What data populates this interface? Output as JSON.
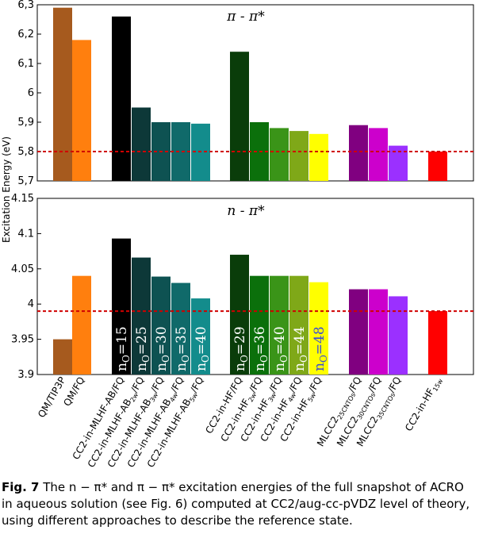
{
  "chart_data": [
    {
      "type": "bar",
      "panel": "top",
      "title": "π - π*",
      "ylabel": "Excitation Energy (eV)",
      "ylim": [
        5.7,
        6.3
      ],
      "yticks": [
        "5,7",
        "5,8",
        "5,9",
        "6",
        "6,1",
        "6,2",
        "6,3"
      ],
      "reference_line": 5.8,
      "categories": [
        "QM/TIP3P",
        "QM/FQ",
        "CC2-in-MLHF-AB/FQ",
        "CC2-in-MLHF-AB2w/FQ",
        "CC2-in-MLHF-AB3w/FQ",
        "CC2-in-MLHF-AB4w/FQ",
        "CC2-in-MLHF-AB5w/FQ",
        "CC2-in-HF/FQ",
        "CC2-in-HF2w/FQ",
        "CC2-in-HF3w/FQ",
        "CC2-in-HF4w/FQ",
        "CC2-in-HF5w/FQ",
        "MLCC2-25CNTOs/FQ",
        "MLCC2-30CNTOs/FQ",
        "MLCC2-35CNTOs/FQ",
        "CC2-in-HF15w"
      ],
      "values": [
        6.29,
        6.18,
        6.26,
        5.95,
        5.9,
        5.9,
        5.895,
        6.14,
        5.9,
        5.88,
        5.87,
        5.86,
        5.89,
        5.88,
        5.82,
        5.8
      ],
      "colors": [
        "#a65a1e",
        "#ff7f0e",
        "#000000",
        "#0d3838",
        "#0e5252",
        "#106a6a",
        "#138c8c",
        "#0a3d0a",
        "#0b700b",
        "#3a9418",
        "#7fa818",
        "#ffff00",
        "#800080",
        "#cc00cc",
        "#9b30ff",
        "#ff0000"
      ]
    },
    {
      "type": "bar",
      "panel": "bottom",
      "title": "n - π*",
      "ylim": [
        3.9,
        4.15
      ],
      "yticks": [
        "3.9",
        "3.95",
        "4",
        "4.05",
        "4.1",
        "4.15"
      ],
      "reference_line": 3.99,
      "categories": [
        "QM/TIP3P",
        "QM/FQ",
        "CC2-in-MLHF-AB/FQ",
        "CC2-in-MLHF-AB2w/FQ",
        "CC2-in-MLHF-AB3w/FQ",
        "CC2-in-MLHF-AB4w/FQ",
        "CC2-in-MLHF-AB5w/FQ",
        "CC2-in-HF/FQ",
        "CC2-in-HF2w/FQ",
        "CC2-in-HF3w/FQ",
        "CC2-in-HF4w/FQ",
        "CC2-in-HF5w/FQ",
        "MLCC2-25CNTOs/FQ",
        "MLCC2-30CNTOs/FQ",
        "MLCC2-35CNTOs/FQ",
        "CC2-in-HF15w"
      ],
      "values": [
        3.95,
        4.04,
        4.093,
        4.066,
        4.039,
        4.03,
        4.008,
        4.07,
        4.04,
        4.04,
        4.04,
        4.031,
        4.021,
        4.021,
        4.011,
        3.99
      ],
      "colors": [
        "#a65a1e",
        "#ff7f0e",
        "#000000",
        "#0d3838",
        "#0e5252",
        "#106a6a",
        "#138c8c",
        "#0a3d0a",
        "#0b700b",
        "#3a9418",
        "#7fa818",
        "#ffff00",
        "#800080",
        "#cc00cc",
        "#9b30ff",
        "#ff0000"
      ],
      "bar_annotations": [
        {
          "index": 2,
          "text": "15"
        },
        {
          "index": 3,
          "text": "25"
        },
        {
          "index": 4,
          "text": "30"
        },
        {
          "index": 5,
          "text": "35"
        },
        {
          "index": 6,
          "text": "40"
        },
        {
          "index": 7,
          "text": "29"
        },
        {
          "index": 8,
          "text": "36"
        },
        {
          "index": 9,
          "text": "40"
        },
        {
          "index": 10,
          "text": "44"
        },
        {
          "index": 11,
          "text": "48"
        }
      ]
    }
  ],
  "x_labels": [
    {
      "main": "QM/TIP3P",
      "sub": "",
      "tail": ""
    },
    {
      "main": "QM/FQ",
      "sub": "",
      "tail": ""
    },
    {
      "main": "CC2-in-MLHF-AB/FQ",
      "sub": "",
      "tail": ""
    },
    {
      "main": "CC2-in-MLHF-AB",
      "sub": "2w",
      "tail": "/FQ"
    },
    {
      "main": "CC2-in-MLHF-AB",
      "sub": "3w",
      "tail": "/FQ"
    },
    {
      "main": "CC2-in-MLHF-AB",
      "sub": "4w",
      "tail": "/FQ"
    },
    {
      "main": "CC2-in-MLHF-AB",
      "sub": "5w",
      "tail": "/FQ"
    },
    {
      "main": "CC2-in-HF/FQ",
      "sub": "",
      "tail": ""
    },
    {
      "main": "CC2-in-HF",
      "sub": "2w",
      "tail": "/FQ"
    },
    {
      "main": "CC2-in-HF",
      "sub": "3w",
      "tail": "/FQ"
    },
    {
      "main": "CC2-in-HF",
      "sub": "4w",
      "tail": "/FQ"
    },
    {
      "main": "CC2-in-HF",
      "sub": "5w",
      "tail": "/FQ"
    },
    {
      "main": "MLCC2",
      "sub": "25CNTOs",
      "tail": "/FQ"
    },
    {
      "main": "MLCC2",
      "sub": "30CNTOs",
      "tail": "/FQ"
    },
    {
      "main": "MLCC2",
      "sub": "35CNTOs",
      "tail": "/FQ"
    },
    {
      "main": "CC2-in-HF",
      "sub": "15w",
      "tail": ""
    }
  ],
  "annotation_prefix": "n",
  "annotation_prefix_sub": "O",
  "annotation_eq": "=",
  "caption": {
    "label": "Fig. 7",
    "text": "The n − π* and π − π* excitation energies of the full snapshot of ACRO in aqueous solution (see Fig. 6) computed at CC2/aug-cc-pVDZ level of theory, using different approaches to describe the reference state."
  }
}
